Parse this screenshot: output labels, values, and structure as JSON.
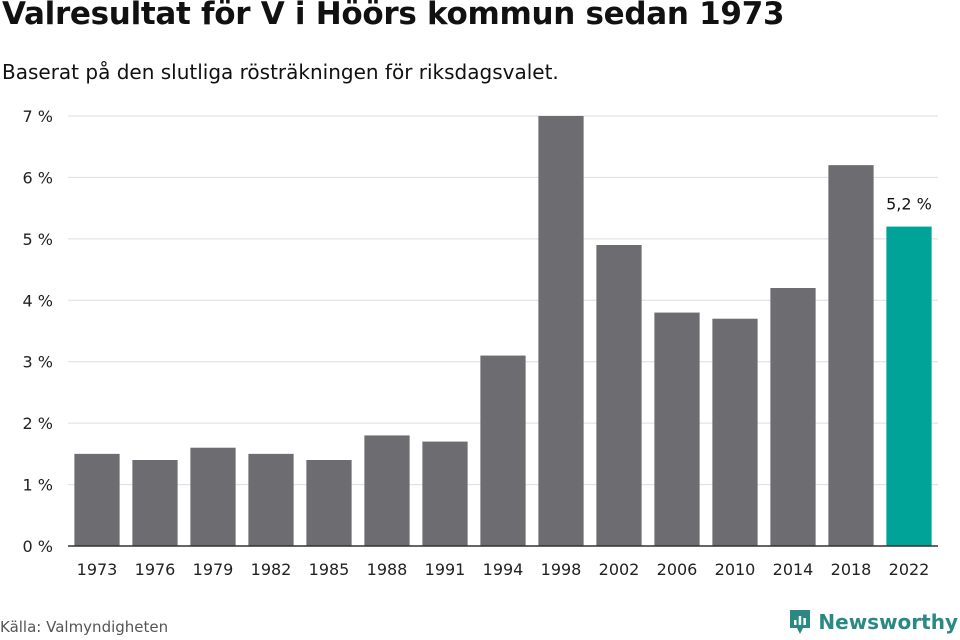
{
  "title": "Valresultat för V i Höörs kommun sedan 1973",
  "subtitle": "Baserat på den slutliga rösträkningen för riksdagsvalet.",
  "source": "Källa: Valmyndigheten",
  "brand": {
    "name": "Newsworthy",
    "icon": "newsworthy-logo-icon",
    "color": "#2a8a83"
  },
  "chart_data": {
    "type": "bar",
    "title": "Valresultat för V i Höörs kommun sedan 1973",
    "xlabel": "",
    "ylabel": "",
    "categories": [
      "1973",
      "1976",
      "1979",
      "1982",
      "1985",
      "1988",
      "1991",
      "1994",
      "1998",
      "2002",
      "2006",
      "2010",
      "2014",
      "2018",
      "2022"
    ],
    "values": [
      1.5,
      1.4,
      1.6,
      1.5,
      1.4,
      1.8,
      1.7,
      3.1,
      7.0,
      4.9,
      3.8,
      3.7,
      4.2,
      6.2,
      5.2
    ],
    "ylim": [
      0,
      7
    ],
    "yticks": [
      0,
      1,
      2,
      3,
      4,
      5,
      6,
      7
    ],
    "ytick_labels": [
      "0 %",
      "1 %",
      "2 %",
      "3 %",
      "4 %",
      "5 %",
      "6 %",
      "7 %"
    ],
    "grid": true,
    "bar_color": "#6d6c71",
    "highlight_color": "#00a398",
    "highlight_index": 14,
    "annotation": {
      "index": 14,
      "text": "5,2 %"
    }
  }
}
